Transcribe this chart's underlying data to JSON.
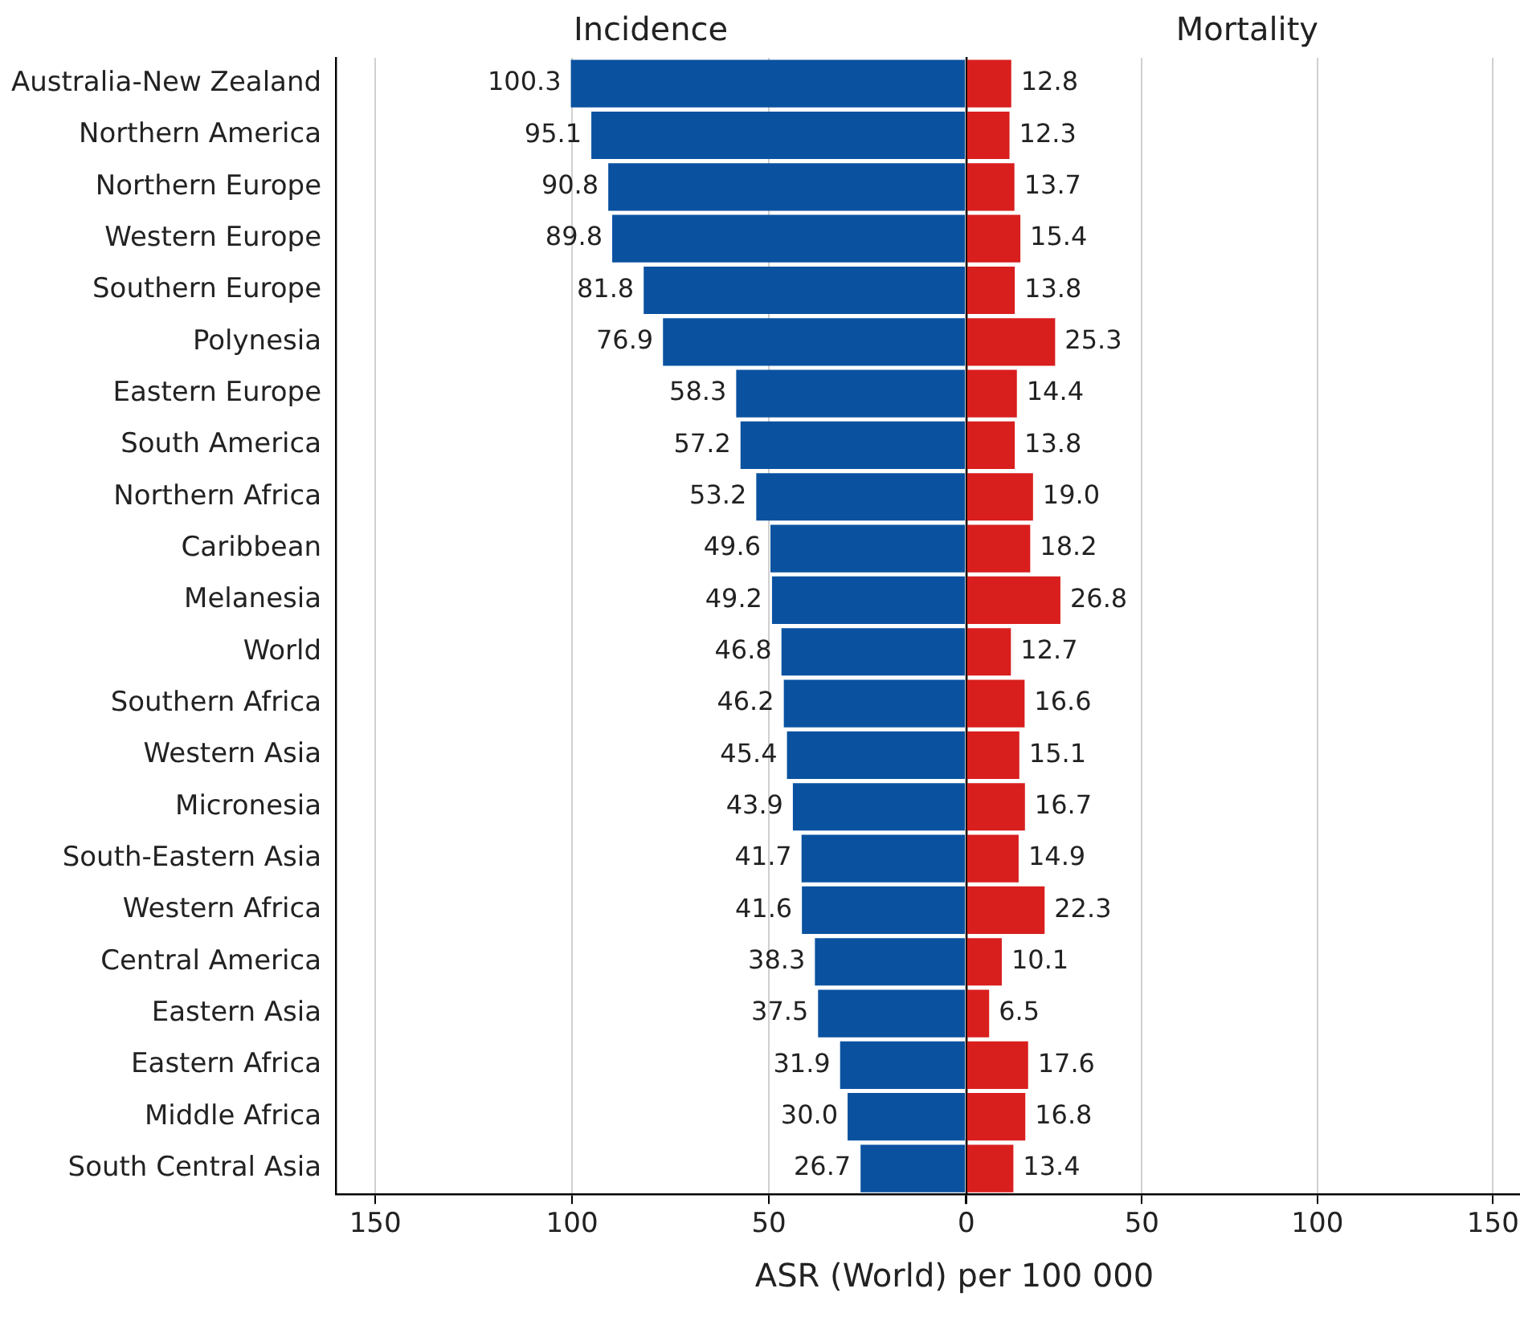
{
  "chart_data": [
    {
      "type": "bar",
      "orientation": "horizontal",
      "title": "Incidence",
      "xlabel": "ASR (World) per 100 000",
      "categories": [
        "Australia-New Zealand",
        "Northern America",
        "Northern Europe",
        "Western Europe",
        "Southern Europe",
        "Polynesia",
        "Eastern Europe",
        "South America",
        "Northern Africa",
        "Caribbean",
        "Melanesia",
        "World",
        "Southern Africa",
        "Western Asia",
        "Micronesia",
        "South-Eastern Asia",
        "Western Africa",
        "Central America",
        "Eastern Asia",
        "Eastern Africa",
        "Middle Africa",
        "South Central Asia"
      ],
      "series": [
        {
          "color": "#0a52a0",
          "values": [
            100.3,
            95.1,
            90.8,
            89.8,
            81.8,
            76.9,
            58.3,
            57.2,
            53.2,
            49.6,
            49.2,
            46.8,
            46.2,
            45.4,
            43.9,
            41.7,
            41.6,
            38.3,
            37.5,
            31.9,
            30.0,
            26.7
          ],
          "value_labels": [
            "100.3",
            "95.1",
            "90.8",
            "89.8",
            "81.8",
            "76.9",
            "58.3",
            "57.2",
            "53.2",
            "49.6",
            "49.2",
            "46.8",
            "46.2",
            "45.4",
            "43.9",
            "41.7",
            "41.6",
            "38.3",
            "37.5",
            "31.9",
            "30.0",
            "26.7"
          ]
        }
      ],
      "xlim": [
        160,
        0
      ],
      "xticks": [
        150,
        100,
        50,
        {
          "value": 0,
          "label": null
        }
      ],
      "grid": "x",
      "legend": false
    },
    {
      "type": "bar",
      "orientation": "horizontal",
      "title": "Mortality",
      "categories": [
        null,
        null,
        null,
        null,
        null,
        null,
        null,
        null,
        null,
        null,
        null,
        null,
        null,
        null,
        null,
        null,
        null,
        null,
        null,
        null,
        null,
        null
      ],
      "series": [
        {
          "color": "#d91e1e",
          "values": [
            12.8,
            12.3,
            13.7,
            15.4,
            13.8,
            25.3,
            14.4,
            13.8,
            19.0,
            18.2,
            26.8,
            12.7,
            16.6,
            15.1,
            16.7,
            14.9,
            22.3,
            10.1,
            6.5,
            17.6,
            16.8,
            13.4
          ],
          "value_labels": [
            "12.8",
            "12.3",
            "13.7",
            "15.4",
            "13.8",
            "25.3",
            "14.4",
            "13.8",
            "19.0",
            "18.2",
            "26.8",
            "12.7",
            "16.6",
            "15.1",
            "16.7",
            "14.9",
            "22.3",
            "10.1",
            "6.5",
            "17.6",
            "16.8",
            "13.4"
          ]
        }
      ],
      "xlim": [
        0,
        160
      ],
      "xticks": [
        0,
        50,
        100,
        150
      ],
      "grid": "x",
      "legend": false,
      "tick_labels": "x"
    }
  ]
}
